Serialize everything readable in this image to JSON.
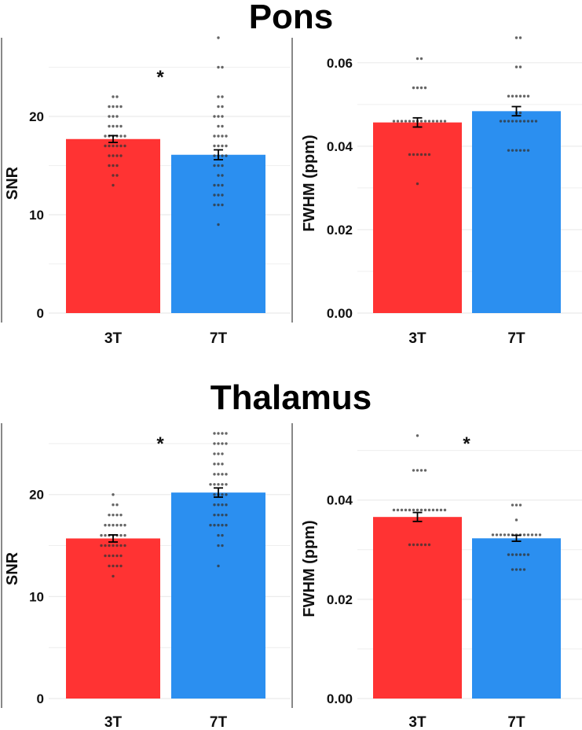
{
  "sections": [
    {
      "title": "Pons"
    },
    {
      "title": "Thalamus"
    }
  ],
  "colors": {
    "bar_3T": "#ff3333",
    "bar_7T": "#2b8ff0",
    "grid": "#ebebeb",
    "point": "#333333"
  },
  "chart_data": [
    {
      "type": "bar",
      "section": "Pons",
      "ylabel": "SNR",
      "categories": [
        "3T",
        "7T"
      ],
      "values": [
        17.7,
        16.1
      ],
      "errors": [
        0.35,
        0.5
      ],
      "ylim": [
        0,
        28
      ],
      "yticks": [
        0,
        10,
        20
      ],
      "ytick_labels": [
        "0",
        "10",
        "20"
      ],
      "significance": "*",
      "points": [
        [
          22,
          22,
          21,
          21,
          21,
          21,
          20,
          20,
          20,
          19,
          19,
          19,
          19,
          18,
          18,
          18,
          18,
          18,
          18,
          17,
          17,
          17,
          17,
          17,
          17,
          16,
          16,
          16,
          16,
          15,
          15,
          15,
          14,
          14,
          13
        ],
        [
          28,
          25,
          25,
          22,
          22,
          21,
          21,
          20,
          20,
          20,
          19,
          19,
          18,
          18,
          18,
          18,
          17,
          17,
          17,
          17,
          16,
          16,
          16,
          16,
          15,
          15,
          15,
          14,
          14,
          13,
          13,
          13,
          12,
          12,
          12,
          11,
          11,
          11,
          9
        ]
      ]
    },
    {
      "type": "bar",
      "section": "Pons",
      "ylabel": "FWHM (ppm)",
      "categories": [
        "3T",
        "7T"
      ],
      "values": [
        0.0457,
        0.0484
      ],
      "errors": [
        0.0011,
        0.0011
      ],
      "ylim": [
        0,
        0.066
      ],
      "yticks": [
        0,
        0.02,
        0.04,
        0.06
      ],
      "ytick_labels": [
        "0.00",
        "0.02",
        "0.04",
        "0.06"
      ],
      "significance": "",
      "points": [
        [
          0.061,
          0.061,
          0.054,
          0.054,
          0.054,
          0.054,
          0.046,
          0.046,
          0.046,
          0.046,
          0.046,
          0.046,
          0.046,
          0.046,
          0.046,
          0.046,
          0.046,
          0.046,
          0.046,
          0.046,
          0.038,
          0.038,
          0.038,
          0.038,
          0.038,
          0.038,
          0.031
        ],
        [
          0.066,
          0.066,
          0.059,
          0.059,
          0.052,
          0.052,
          0.052,
          0.052,
          0.052,
          0.052,
          0.048,
          0.048,
          0.046,
          0.046,
          0.046,
          0.046,
          0.046,
          0.046,
          0.046,
          0.046,
          0.046,
          0.046,
          0.039,
          0.039,
          0.039,
          0.039,
          0.039,
          0.039
        ]
      ]
    },
    {
      "type": "bar",
      "section": "Thalamus",
      "ylabel": "SNR",
      "categories": [
        "3T",
        "7T"
      ],
      "values": [
        15.7,
        20.2
      ],
      "errors": [
        0.35,
        0.45
      ],
      "ylim": [
        0,
        27
      ],
      "yticks": [
        0,
        10,
        20
      ],
      "ytick_labels": [
        "0",
        "10",
        "20"
      ],
      "significance": "*",
      "points": [
        [
          20,
          19,
          19,
          18,
          18,
          18,
          18,
          17,
          17,
          17,
          17,
          17,
          17,
          16,
          16,
          16,
          16,
          16,
          16,
          16,
          15,
          15,
          15,
          15,
          15,
          15,
          15,
          14,
          14,
          14,
          14,
          14,
          13,
          13,
          13,
          13,
          12
        ],
        [
          26,
          26,
          26,
          26,
          25,
          25,
          25,
          25,
          24,
          24,
          24,
          23,
          23,
          23,
          22,
          22,
          22,
          22,
          21,
          21,
          21,
          21,
          21,
          20,
          20,
          20,
          20,
          19,
          19,
          19,
          19,
          18,
          18,
          18,
          18,
          17,
          17,
          17,
          17,
          17,
          16,
          16,
          15,
          15,
          13
        ]
      ]
    },
    {
      "type": "bar",
      "section": "Thalamus",
      "ylabel": "FWHM (ppm)",
      "categories": [
        "3T",
        "7T"
      ],
      "values": [
        0.0366,
        0.0323
      ],
      "errors": [
        0.0009,
        0.0006
      ],
      "ylim": [
        0,
        0.0555
      ],
      "yticks": [
        0,
        0.02,
        0.04
      ],
      "ytick_labels": [
        "0.00",
        "0.02",
        "0.04"
      ],
      "significance": "*",
      "points": [
        [
          0.053,
          0.046,
          0.046,
          0.046,
          0.046,
          0.038,
          0.038,
          0.038,
          0.038,
          0.038,
          0.038,
          0.038,
          0.038,
          0.038,
          0.038,
          0.038,
          0.038,
          0.038,
          0.038,
          0.031,
          0.031,
          0.031,
          0.031,
          0.031,
          0.031
        ],
        [
          0.039,
          0.039,
          0.039,
          0.036,
          0.033,
          0.033,
          0.033,
          0.033,
          0.033,
          0.033,
          0.033,
          0.033,
          0.033,
          0.033,
          0.033,
          0.033,
          0.033,
          0.029,
          0.029,
          0.029,
          0.029,
          0.029,
          0.029,
          0.026,
          0.026,
          0.026,
          0.026
        ]
      ]
    }
  ]
}
